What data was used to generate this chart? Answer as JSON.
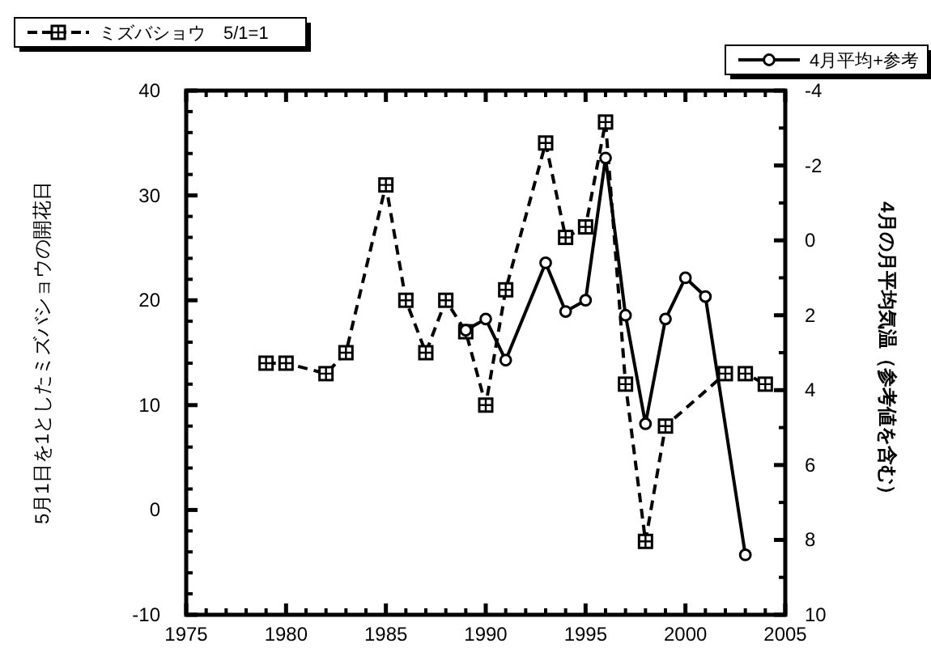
{
  "chart_data": {
    "type": "line",
    "xlabel": null,
    "ylabel": "5月1日を1としたミズバショウの開花日",
    "y2label": "4月の月平均気温（参考値を含む）",
    "xlim": [
      1975,
      2005
    ],
    "xticks": [
      1975,
      1980,
      1985,
      1990,
      1995,
      2000,
      2005
    ],
    "ylim": [
      -10,
      40
    ],
    "yticks": [
      -10,
      0,
      10,
      20,
      30,
      40
    ],
    "y2lim": [
      10,
      -4
    ],
    "y2ticks": [
      -4,
      -2,
      0,
      2,
      4,
      6,
      8,
      10
    ],
    "grid": false,
    "legend": "top",
    "series": [
      {
        "name": "ミズバショウ　5/1=1",
        "color": "#000000",
        "line_style": "dashed",
        "marker": "square",
        "x": [
          1979,
          1980,
          1982,
          1983,
          1985,
          1986,
          1987,
          1988,
          1989,
          1990,
          1991,
          1993,
          1994,
          1995,
          1996,
          1997,
          1998,
          1999,
          2002,
          2003,
          2004
        ],
        "values": [
          14,
          14,
          13,
          15,
          31,
          20,
          15,
          20,
          17,
          10,
          21,
          35,
          26,
          27,
          37,
          12,
          -3,
          8,
          13,
          13,
          12
        ]
      },
      {
        "name": "4月平均+参考",
        "color": "#000000",
        "line_style": "solid",
        "marker": "circle",
        "axis": "y2",
        "x": [
          1989,
          1990,
          1991,
          1993,
          1994,
          1995,
          1996,
          1997,
          1998,
          1999,
          2000,
          2001,
          2003
        ],
        "values": [
          2.4,
          2.1,
          3.2,
          0.6,
          1.9,
          1.6,
          -2.2,
          2.0,
          4.9,
          2.1,
          1.0,
          1.5,
          8.4
        ]
      }
    ]
  }
}
